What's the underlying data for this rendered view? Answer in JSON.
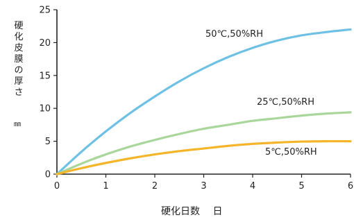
{
  "chart_data": {
    "type": "line",
    "xlabel": "硬化日数　 日",
    "ylabel": "硬化皮膜の厚さ",
    "yunit": "㎜",
    "xlim": [
      0,
      6
    ],
    "ylim": [
      0,
      25
    ],
    "xticks": [
      0,
      1,
      2,
      3,
      4,
      5,
      6
    ],
    "yticks": [
      0,
      5,
      10,
      15,
      20,
      25
    ],
    "grid": false,
    "series": [
      {
        "name": "50℃,50%RH",
        "color": "#6ec1e4",
        "x": [
          0,
          0.5,
          1,
          1.5,
          2,
          2.5,
          3,
          3.5,
          4,
          4.5,
          5,
          5.5,
          6
        ],
        "y": [
          0,
          3.4,
          6.5,
          9.3,
          11.8,
          14.1,
          16.1,
          17.8,
          19.2,
          20.3,
          21.1,
          21.6,
          22.0
        ]
      },
      {
        "name": "25℃,50%RH",
        "color": "#a9d69a",
        "x": [
          0,
          0.5,
          1,
          1.5,
          2,
          2.5,
          3,
          3.5,
          4,
          4.5,
          5,
          5.5,
          6
        ],
        "y": [
          0,
          1.6,
          3.0,
          4.2,
          5.2,
          6.1,
          6.9,
          7.5,
          8.1,
          8.5,
          8.9,
          9.2,
          9.4
        ]
      },
      {
        "name": "5℃,50%RH",
        "color": "#f4b52a",
        "x": [
          0,
          0.5,
          1,
          1.5,
          2,
          2.5,
          3,
          3.5,
          4,
          4.5,
          5,
          5.5,
          6
        ],
        "y": [
          0,
          0.9,
          1.7,
          2.4,
          3.0,
          3.5,
          3.9,
          4.3,
          4.6,
          4.8,
          4.95,
          5.0,
          5.0
        ]
      }
    ]
  }
}
